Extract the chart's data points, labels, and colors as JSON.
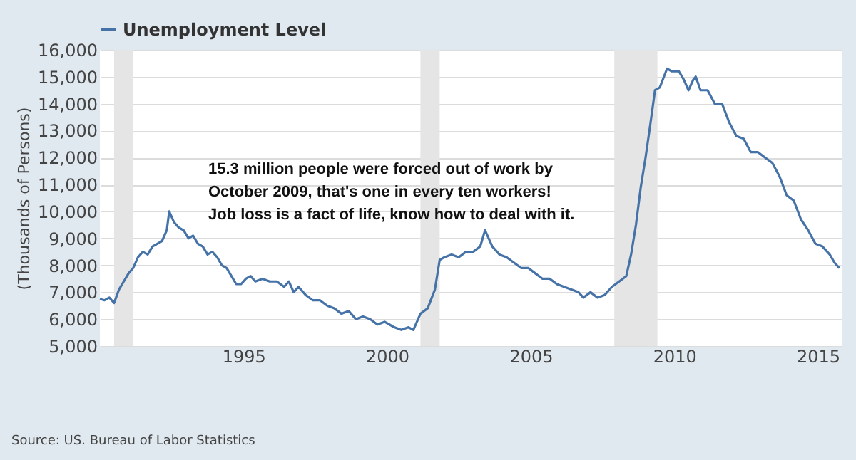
{
  "chart_data": {
    "type": "line",
    "ylabel": "(Thousands of Persons)",
    "annotations": [
      "15.3 million people were forced out of work by\nOctober 2009, that's one in every ten workers!\nJob loss is a fact of life, know how to deal with it.",
      "Source: US. Bureau of Labor Statistics"
    ],
    "x": [
      "1990-01",
      "1990-03",
      "1990-05",
      "1990-07",
      "1990-09",
      "1990-11",
      "1991-01",
      "1991-03",
      "1991-05",
      "1991-07",
      "1991-09",
      "1991-11",
      "1992-01",
      "1992-03",
      "1992-05",
      "1992-06",
      "1992-08",
      "1992-10",
      "1992-12",
      "1993-02",
      "1993-04",
      "1993-06",
      "1993-08",
      "1993-10",
      "1993-12",
      "1994-02",
      "1994-04",
      "1994-06",
      "1994-08",
      "1994-10",
      "1994-12",
      "1995-02",
      "1995-04",
      "1995-06",
      "1995-09",
      "1995-12",
      "1996-03",
      "1996-06",
      "1996-08",
      "1996-10",
      "1996-12",
      "1997-03",
      "1997-06",
      "1997-09",
      "1997-12",
      "1998-03",
      "1998-06",
      "1998-09",
      "1998-12",
      "1999-03",
      "1999-06",
      "1999-09",
      "1999-12",
      "2000-02",
      "2000-04",
      "2000-07",
      "2000-10",
      "2000-12",
      "2001-03",
      "2001-06",
      "2001-09",
      "2001-11",
      "2002-01",
      "2002-04",
      "2002-07",
      "2002-10",
      "2003-01",
      "2003-04",
      "2003-06",
      "2003-09",
      "2003-12",
      "2004-03",
      "2004-06",
      "2004-09",
      "2004-12",
      "2005-03",
      "2005-06",
      "2005-09",
      "2005-12",
      "2006-03",
      "2006-06",
      "2006-09",
      "2006-11",
      "2007-02",
      "2007-05",
      "2007-08",
      "2007-11",
      "2008-02",
      "2008-05",
      "2008-07",
      "2008-09",
      "2008-11",
      "2009-01",
      "2009-03",
      "2009-05",
      "2009-07",
      "2009-10",
      "2009-12",
      "2010-03",
      "2010-05",
      "2010-07",
      "2010-09",
      "2010-10",
      "2010-12",
      "2011-03",
      "2011-06",
      "2011-09",
      "2011-12",
      "2012-03",
      "2012-06",
      "2012-09",
      "2012-12",
      "2013-03",
      "2013-06",
      "2013-09",
      "2013-12",
      "2014-03",
      "2014-06",
      "2014-09",
      "2014-12",
      "2015-03",
      "2015-06",
      "2015-08",
      "2015-10"
    ],
    "series": [
      {
        "name": "Unemployment Level",
        "color": "#4572a7",
        "values": [
          6750,
          6700,
          6800,
          6600,
          7100,
          7400,
          7700,
          7900,
          8300,
          8500,
          8400,
          8700,
          8800,
          8900,
          9300,
          10000,
          9600,
          9400,
          9300,
          9000,
          9100,
          8800,
          8700,
          8400,
          8500,
          8300,
          8000,
          7900,
          7600,
          7300,
          7300,
          7500,
          7600,
          7400,
          7500,
          7400,
          7400,
          7200,
          7400,
          7000,
          7200,
          6900,
          6700,
          6700,
          6500,
          6400,
          6200,
          6300,
          6000,
          6100,
          6000,
          5800,
          5900,
          5800,
          5700,
          5600,
          5700,
          5600,
          6200,
          6400,
          7100,
          8200,
          8300,
          8400,
          8300,
          8500,
          8500,
          8700,
          9300,
          8700,
          8400,
          8300,
          8100,
          7900,
          7900,
          7700,
          7500,
          7500,
          7300,
          7200,
          7100,
          7000,
          6800,
          7000,
          6800,
          6900,
          7200,
          7400,
          7600,
          8400,
          9500,
          10900,
          12000,
          13200,
          14500,
          14600,
          15300,
          15200,
          15200,
          14900,
          14500,
          14900,
          15000,
          14500,
          14500,
          14000,
          14000,
          13300,
          12800,
          12700,
          12200,
          12200,
          12000,
          11800,
          11300,
          10600,
          10400,
          9700,
          9300,
          8800,
          8700,
          8400,
          8100,
          7900
        ]
      }
    ],
    "xlim": [
      "1990-01-01",
      "2015-11-01"
    ],
    "xticks": [
      "1995",
      "2000",
      "2005",
      "2010",
      "2015"
    ],
    "ylim": [
      5000,
      16000
    ],
    "yticks": [
      {
        "value": 5000,
        "label": "5,000"
      },
      {
        "value": 6000,
        "label": "6,000"
      },
      {
        "value": 7000,
        "label": "7,000"
      },
      {
        "value": 8000,
        "label": "8,000"
      },
      {
        "value": 9000,
        "label": "9,000"
      },
      {
        "value": 10000,
        "label": "10,000"
      },
      {
        "value": 11000,
        "label": "11,000"
      },
      {
        "value": 12000,
        "label": "12,000"
      },
      {
        "value": 13000,
        "label": "13,000"
      },
      {
        "value": 14000,
        "label": "14,000"
      },
      {
        "value": 15000,
        "label": "15,000"
      },
      {
        "value": 16000,
        "label": "16,000"
      }
    ],
    "bands": [
      {
        "axis": "x",
        "from": "1990-07",
        "to": "1991-03",
        "color": "#e5e5e5"
      },
      {
        "axis": "x",
        "from": "2001-03",
        "to": "2001-11",
        "color": "#e5e5e5"
      },
      {
        "axis": "x",
        "from": "2007-12",
        "to": "2009-06",
        "color": "#e5e5e5"
      }
    ],
    "grid": "y",
    "legend": "top",
    "line_style": "solid",
    "marker": "none"
  }
}
